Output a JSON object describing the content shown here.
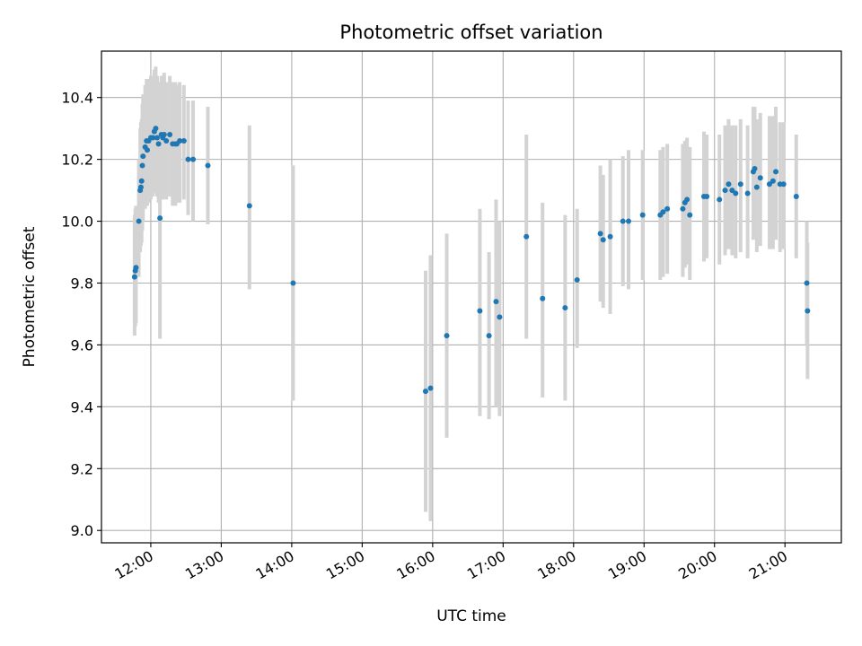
{
  "chart_data": {
    "type": "scatter",
    "title": "Photometric offset variation",
    "xlabel": "UTC time",
    "ylabel": "Photometric offset",
    "x_unit": "hours (UTC)",
    "xlim": [
      11.3,
      21.8
    ],
    "ylim": [
      8.96,
      10.55
    ],
    "x_ticks": [
      12,
      13,
      14,
      15,
      16,
      17,
      18,
      19,
      20,
      21
    ],
    "x_tick_labels": [
      "12:00",
      "13:00",
      "14:00",
      "15:00",
      "16:00",
      "17:00",
      "18:00",
      "19:00",
      "20:00",
      "21:00"
    ],
    "y_ticks": [
      9.0,
      9.2,
      9.4,
      9.6,
      9.8,
      10.0,
      10.2,
      10.4
    ],
    "y_tick_labels": [
      "9.0",
      "9.2",
      "9.4",
      "9.6",
      "9.8",
      "10.0",
      "10.2",
      "10.4"
    ],
    "grid": true,
    "colors": {
      "point": "#1f77b4",
      "errorbar": "#d3d3d3",
      "grid": "#b0b0b0"
    },
    "series": [
      {
        "points": [
          [
            11.77,
            9.82,
            9.63,
            10.02
          ],
          [
            11.78,
            9.84,
            9.66,
            10.04
          ],
          [
            11.79,
            9.85,
            9.67,
            10.05
          ],
          [
            11.83,
            10.0,
            9.82,
            10.2
          ],
          [
            11.85,
            10.1,
            9.9,
            10.3
          ],
          [
            11.86,
            10.11,
            9.92,
            10.32
          ],
          [
            11.87,
            10.13,
            9.93,
            10.33
          ],
          [
            11.88,
            10.18,
            9.97,
            10.38
          ],
          [
            11.89,
            10.21,
            10.0,
            10.41
          ],
          [
            11.92,
            10.24,
            10.04,
            10.44
          ],
          [
            11.94,
            10.26,
            10.06,
            10.46
          ],
          [
            11.95,
            10.23,
            10.05,
            10.43
          ],
          [
            11.97,
            10.26,
            10.06,
            10.46
          ],
          [
            12.0,
            10.27,
            10.07,
            10.47
          ],
          [
            12.03,
            10.27,
            10.08,
            10.47
          ],
          [
            12.05,
            10.29,
            10.09,
            10.49
          ],
          [
            12.07,
            10.3,
            10.1,
            10.5
          ],
          [
            12.09,
            10.27,
            10.08,
            10.47
          ],
          [
            12.11,
            10.25,
            10.06,
            10.45
          ],
          [
            12.13,
            10.01,
            9.62,
            10.38
          ],
          [
            12.15,
            10.28,
            10.08,
            10.47
          ],
          [
            12.17,
            10.27,
            10.07,
            10.47
          ],
          [
            12.19,
            10.28,
            10.08,
            10.48
          ],
          [
            12.22,
            10.26,
            10.07,
            10.45
          ],
          [
            12.27,
            10.28,
            10.08,
            10.47
          ],
          [
            12.31,
            10.25,
            10.05,
            10.45
          ],
          [
            12.35,
            10.25,
            10.05,
            10.45
          ],
          [
            12.37,
            10.25,
            10.06,
            10.44
          ],
          [
            12.41,
            10.26,
            10.06,
            10.45
          ],
          [
            12.47,
            10.26,
            10.07,
            10.44
          ],
          [
            12.53,
            10.2,
            10.02,
            10.39
          ],
          [
            12.6,
            10.2,
            10.0,
            10.39
          ],
          [
            12.81,
            10.18,
            9.99,
            10.37
          ],
          [
            13.4,
            10.05,
            9.78,
            10.31
          ],
          [
            14.02,
            9.8,
            9.42,
            10.18
          ],
          [
            15.9,
            9.45,
            9.06,
            9.84
          ],
          [
            15.97,
            9.46,
            9.03,
            9.89
          ],
          [
            16.2,
            9.63,
            9.3,
            9.96
          ],
          [
            16.67,
            9.71,
            9.37,
            10.04
          ],
          [
            16.8,
            9.63,
            9.36,
            9.9
          ],
          [
            16.9,
            9.74,
            9.4,
            10.07
          ],
          [
            16.95,
            9.69,
            9.37,
            10.0
          ],
          [
            17.33,
            9.95,
            9.62,
            10.28
          ],
          [
            17.56,
            9.75,
            9.43,
            10.06
          ],
          [
            17.88,
            9.72,
            9.42,
            10.02
          ],
          [
            18.05,
            9.81,
            9.59,
            10.04
          ],
          [
            18.38,
            9.96,
            9.74,
            10.18
          ],
          [
            18.42,
            9.94,
            9.72,
            10.15
          ],
          [
            18.52,
            9.95,
            9.7,
            10.2
          ],
          [
            18.7,
            10.0,
            9.79,
            10.21
          ],
          [
            18.78,
            10.0,
            9.78,
            10.23
          ],
          [
            18.98,
            10.02,
            9.81,
            10.23
          ],
          [
            19.23,
            10.02,
            9.81,
            10.23
          ],
          [
            19.27,
            10.03,
            9.82,
            10.24
          ],
          [
            19.33,
            10.04,
            9.83,
            10.25
          ],
          [
            19.55,
            10.04,
            9.82,
            10.25
          ],
          [
            19.58,
            10.06,
            9.85,
            10.26
          ],
          [
            19.61,
            10.07,
            9.86,
            10.27
          ],
          [
            19.65,
            10.02,
            9.81,
            10.24
          ],
          [
            19.85,
            10.08,
            9.87,
            10.29
          ],
          [
            19.89,
            10.08,
            9.88,
            10.28
          ],
          [
            20.07,
            10.07,
            9.86,
            10.28
          ],
          [
            20.15,
            10.1,
            9.89,
            10.31
          ],
          [
            20.2,
            10.12,
            9.91,
            10.33
          ],
          [
            20.25,
            10.1,
            9.89,
            10.31
          ],
          [
            20.3,
            10.09,
            9.88,
            10.31
          ],
          [
            20.37,
            10.12,
            9.9,
            10.33
          ],
          [
            20.47,
            10.09,
            9.88,
            10.31
          ],
          [
            20.55,
            10.16,
            9.94,
            10.37
          ],
          [
            20.57,
            10.17,
            9.95,
            10.37
          ],
          [
            20.6,
            10.11,
            9.9,
            10.33
          ],
          [
            20.65,
            10.14,
            9.92,
            10.35
          ],
          [
            20.78,
            10.12,
            9.91,
            10.34
          ],
          [
            20.83,
            10.13,
            9.91,
            10.34
          ],
          [
            20.87,
            10.16,
            9.94,
            10.37
          ],
          [
            20.93,
            10.12,
            9.9,
            10.32
          ],
          [
            20.98,
            10.12,
            9.91,
            10.32
          ],
          [
            21.16,
            10.08,
            9.88,
            10.28
          ],
          [
            21.31,
            9.8,
            9.6,
            10.0
          ],
          [
            21.32,
            9.71,
            9.49,
            9.93
          ]
        ]
      }
    ]
  }
}
